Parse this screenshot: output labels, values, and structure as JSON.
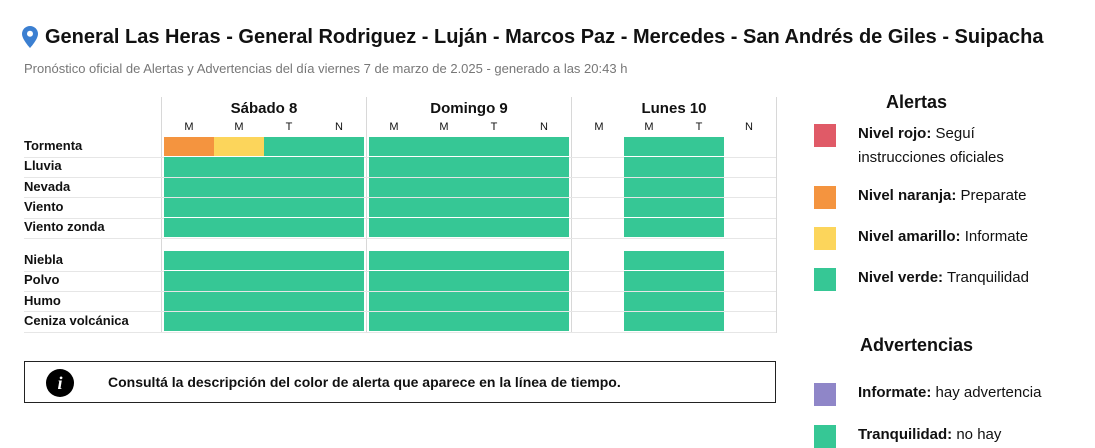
{
  "header": {
    "title": "General Las Heras - General Rodriguez - Luján - Marcos Paz - Mercedes - San Andrés de Giles - Suipacha",
    "subtitle": "Pronóstico oficial de Alertas y Advertencias del día viernes 7 de marzo de 2.025 - generado a las 20:43 h"
  },
  "timeline": {
    "days": [
      {
        "label": "Sábado 8",
        "slots": [
          "M",
          "M",
          "T",
          "N"
        ]
      },
      {
        "label": "Domingo 9",
        "slots": [
          "M",
          "M",
          "T",
          "N"
        ]
      },
      {
        "label": "Lunes 10",
        "slots": [
          "M",
          "M",
          "T",
          "N"
        ]
      }
    ],
    "row_groups": [
      [
        {
          "label": "Tormenta",
          "cells": [
            "#f4943f",
            "#fcd55b",
            "#36c795",
            "#36c795",
            "#36c795",
            "#36c795",
            "#36c795",
            "#36c795",
            null,
            "#36c795",
            "#36c795",
            null
          ]
        },
        {
          "label": "Lluvia",
          "cells": [
            "#36c795",
            "#36c795",
            "#36c795",
            "#36c795",
            "#36c795",
            "#36c795",
            "#36c795",
            "#36c795",
            null,
            "#36c795",
            "#36c795",
            null
          ]
        },
        {
          "label": "Nevada",
          "cells": [
            "#36c795",
            "#36c795",
            "#36c795",
            "#36c795",
            "#36c795",
            "#36c795",
            "#36c795",
            "#36c795",
            null,
            "#36c795",
            "#36c795",
            null
          ]
        },
        {
          "label": "Viento",
          "cells": [
            "#36c795",
            "#36c795",
            "#36c795",
            "#36c795",
            "#36c795",
            "#36c795",
            "#36c795",
            "#36c795",
            null,
            "#36c795",
            "#36c795",
            null
          ]
        },
        {
          "label": "Viento zonda",
          "cells": [
            "#36c795",
            "#36c795",
            "#36c795",
            "#36c795",
            "#36c795",
            "#36c795",
            "#36c795",
            "#36c795",
            null,
            "#36c795",
            "#36c795",
            null
          ]
        }
      ],
      [
        {
          "label": "Niebla",
          "cells": [
            "#36c795",
            "#36c795",
            "#36c795",
            "#36c795",
            "#36c795",
            "#36c795",
            "#36c795",
            "#36c795",
            null,
            "#36c795",
            "#36c795",
            null
          ]
        },
        {
          "label": "Polvo",
          "cells": [
            "#36c795",
            "#36c795",
            "#36c795",
            "#36c795",
            "#36c795",
            "#36c795",
            "#36c795",
            "#36c795",
            null,
            "#36c795",
            "#36c795",
            null
          ]
        },
        {
          "label": "Humo",
          "cells": [
            "#36c795",
            "#36c795",
            "#36c795",
            "#36c795",
            "#36c795",
            "#36c795",
            "#36c795",
            "#36c795",
            null,
            "#36c795",
            "#36c795",
            null
          ]
        },
        {
          "label": "Ceniza volcánica",
          "cells": [
            "#36c795",
            "#36c795",
            "#36c795",
            "#36c795",
            "#36c795",
            "#36c795",
            "#36c795",
            "#36c795",
            null,
            "#36c795",
            "#36c795",
            null
          ]
        }
      ]
    ]
  },
  "notice": "Consultá la descripción del color de alerta que aparece en la línea de tiempo.",
  "legend": {
    "alerts": {
      "title": "Alertas",
      "items": [
        {
          "label": "Nivel rojo:",
          "text": "Seguí instrucciones oficiales",
          "color": "#e05a67"
        },
        {
          "label": "Nivel naranja:",
          "text": "Preparate",
          "color": "#f4943f"
        },
        {
          "label": "Nivel amarillo:",
          "text": "Informate",
          "color": "#fcd55b"
        },
        {
          "label": "Nivel verde:",
          "text": "Tranquilidad",
          "color": "#36c795"
        }
      ]
    },
    "warnings": {
      "title": "Advertencias",
      "items": [
        {
          "label": "Informate:",
          "text": "hay advertencia",
          "color": "#8f86c8"
        },
        {
          "label": "Tranquilidad:",
          "text": "no hay",
          "color": "#36c795"
        }
      ]
    }
  }
}
